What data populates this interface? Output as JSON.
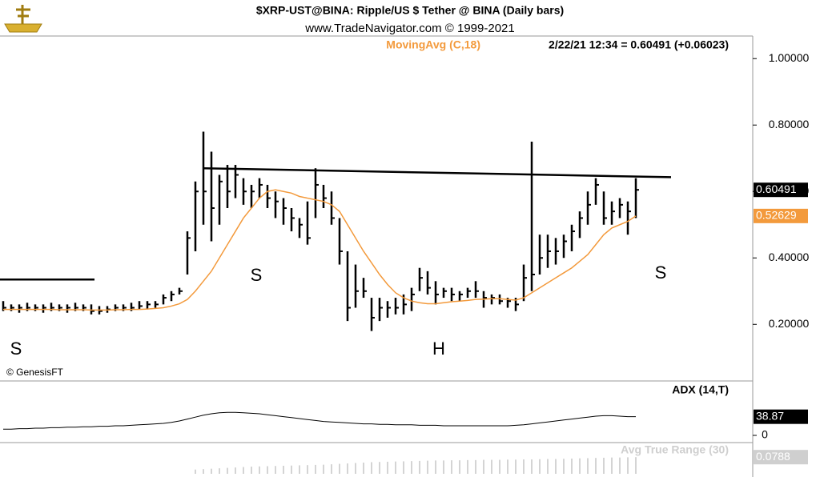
{
  "header": {
    "title": "$XRP-UST@BINA:  Ripple/US $ Tether @ BINA  (Daily bars)",
    "subtitle": "www.TradeNavigator.com © 1999-2021"
  },
  "credit": "© GenesisFT",
  "chart_data": [
    {
      "type": "ohlc",
      "readout": "2/22/21 12:34 = 0.60491 (+0.06023)",
      "color": "#000000",
      "high": [
        0.27,
        0.26,
        0.26,
        0.265,
        0.26,
        0.26,
        0.265,
        0.26,
        0.26,
        0.265,
        0.26,
        0.26,
        0.255,
        0.255,
        0.26,
        0.26,
        0.265,
        0.27,
        0.27,
        0.27,
        0.29,
        0.3,
        0.31,
        0.48,
        0.63,
        0.78,
        0.72,
        0.65,
        0.68,
        0.68,
        0.64,
        0.62,
        0.64,
        0.62,
        0.6,
        0.58,
        0.55,
        0.52,
        0.57,
        0.67,
        0.62,
        0.6,
        0.52,
        0.42,
        0.38,
        0.34,
        0.28,
        0.28,
        0.27,
        0.28,
        0.29,
        0.31,
        0.37,
        0.36,
        0.33,
        0.31,
        0.31,
        0.3,
        0.31,
        0.33,
        0.3,
        0.29,
        0.29,
        0.28,
        0.28,
        0.38,
        0.75,
        0.47,
        0.47,
        0.46,
        0.47,
        0.5,
        0.54,
        0.6,
        0.64,
        0.6,
        0.57,
        0.58,
        0.57,
        0.64
      ],
      "low": [
        0.24,
        0.24,
        0.235,
        0.24,
        0.24,
        0.235,
        0.24,
        0.24,
        0.235,
        0.24,
        0.24,
        0.23,
        0.23,
        0.235,
        0.24,
        0.24,
        0.24,
        0.245,
        0.245,
        0.25,
        0.26,
        0.27,
        0.29,
        0.35,
        0.42,
        0.5,
        0.45,
        0.5,
        0.55,
        0.58,
        0.56,
        0.55,
        0.58,
        0.55,
        0.52,
        0.5,
        0.48,
        0.46,
        0.44,
        0.52,
        0.55,
        0.5,
        0.38,
        0.21,
        0.25,
        0.28,
        0.18,
        0.21,
        0.22,
        0.23,
        0.23,
        0.24,
        0.3,
        0.29,
        0.26,
        0.28,
        0.27,
        0.27,
        0.28,
        0.28,
        0.25,
        0.26,
        0.26,
        0.25,
        0.24,
        0.27,
        0.3,
        0.35,
        0.37,
        0.38,
        0.4,
        0.42,
        0.46,
        0.5,
        0.56,
        0.5,
        0.5,
        0.52,
        0.47,
        0.52
      ],
      "close": [
        0.25,
        0.25,
        0.25,
        0.25,
        0.25,
        0.25,
        0.25,
        0.25,
        0.25,
        0.25,
        0.25,
        0.24,
        0.24,
        0.245,
        0.25,
        0.25,
        0.25,
        0.255,
        0.26,
        0.26,
        0.28,
        0.29,
        0.3,
        0.46,
        0.6,
        0.6,
        0.55,
        0.63,
        0.6,
        0.65,
        0.6,
        0.6,
        0.62,
        0.58,
        0.57,
        0.55,
        0.52,
        0.5,
        0.46,
        0.62,
        0.58,
        0.52,
        0.42,
        0.25,
        0.3,
        0.3,
        0.22,
        0.25,
        0.25,
        0.25,
        0.26,
        0.29,
        0.34,
        0.31,
        0.29,
        0.3,
        0.29,
        0.29,
        0.3,
        0.3,
        0.28,
        0.28,
        0.27,
        0.27,
        0.26,
        0.34,
        0.35,
        0.4,
        0.42,
        0.42,
        0.45,
        0.48,
        0.52,
        0.56,
        0.62,
        0.52,
        0.54,
        0.56,
        0.54,
        0.60491
      ],
      "series": [
        {
          "name": "MovingAvg (C,18)",
          "color": "#f39a3c",
          "values": [
            0.245,
            0.245,
            0.245,
            0.245,
            0.245,
            0.245,
            0.245,
            0.244,
            0.244,
            0.244,
            0.244,
            0.243,
            0.243,
            0.243,
            0.244,
            0.244,
            0.245,
            0.245,
            0.246,
            0.248,
            0.25,
            0.255,
            0.262,
            0.275,
            0.3,
            0.33,
            0.36,
            0.4,
            0.44,
            0.48,
            0.52,
            0.55,
            0.58,
            0.6,
            0.605,
            0.6,
            0.595,
            0.585,
            0.58,
            0.575,
            0.57,
            0.56,
            0.54,
            0.5,
            0.46,
            0.42,
            0.385,
            0.35,
            0.32,
            0.295,
            0.28,
            0.27,
            0.265,
            0.262,
            0.262,
            0.265,
            0.268,
            0.27,
            0.272,
            0.275,
            0.276,
            0.277,
            0.277,
            0.275,
            0.273,
            0.28,
            0.295,
            0.31,
            0.325,
            0.34,
            0.355,
            0.37,
            0.39,
            0.41,
            0.44,
            0.47,
            0.49,
            0.5,
            0.51,
            0.52629
          ]
        }
      ],
      "trendlines": [
        {
          "x": [
            25,
            83.4
          ],
          "y": [
            0.67,
            0.643
          ]
        },
        {
          "x": [
            -0.4,
            11.4
          ],
          "y": [
            0.335,
            0.335
          ]
        }
      ],
      "annotations": [
        "S",
        "S",
        "H",
        "S"
      ],
      "ylim": [
        0.032,
        1.068
      ],
      "yticks": [
        {
          "value": 0.2,
          "label": "0.20000"
        },
        {
          "value": 0.4,
          "label": "0.40000"
        },
        {
          "value": 0.6,
          "label": "0.60000"
        },
        {
          "value": 0.8,
          "label": "0.80000"
        },
        {
          "value": 1,
          "label": "1.00000"
        }
      ]
    },
    {
      "type": "line",
      "series": [
        {
          "name": "ADX (14,T)",
          "color": "#000000",
          "values": [
            13,
            13,
            14,
            14,
            15,
            15,
            16,
            16,
            17,
            17,
            18,
            18,
            19,
            19,
            20,
            20,
            21,
            22,
            23,
            24,
            25,
            27,
            30,
            34,
            38,
            42,
            45,
            47,
            48,
            48,
            47,
            46,
            45,
            43,
            41,
            39,
            37,
            35,
            33,
            31,
            29,
            28,
            27,
            26,
            25,
            24,
            24,
            23,
            23,
            22,
            22,
            22,
            21,
            21,
            21,
            20,
            20,
            20,
            20,
            20,
            20,
            20,
            20,
            20,
            21,
            22,
            24,
            26,
            28,
            30,
            32,
            34,
            36,
            38,
            40,
            41,
            41,
            40,
            39,
            38.87
          ]
        }
      ],
      "ylim": [
        -10,
        110
      ],
      "yticks": [
        0
      ]
    },
    {
      "type": "bar",
      "series": [
        {
          "name": "Avg True Range (30)",
          "color": "#d4d4d4",
          "values": [
            null,
            null,
            null,
            null,
            null,
            null,
            null,
            null,
            null,
            null,
            null,
            null,
            null,
            null,
            null,
            null,
            null,
            null,
            null,
            null,
            null,
            null,
            null,
            null,
            0.02,
            0.022,
            0.024,
            0.026,
            0.028,
            0.03,
            0.032,
            0.034,
            0.035,
            0.036,
            0.037,
            0.038,
            0.039,
            0.04,
            0.041,
            0.042,
            0.043,
            0.045,
            0.047,
            0.049,
            0.051,
            0.053,
            0.055,
            0.056,
            0.057,
            0.058,
            0.059,
            0.06,
            0.061,
            0.062,
            0.063,
            0.063,
            0.064,
            0.064,
            0.065,
            0.065,
            0.066,
            0.066,
            0.066,
            0.067,
            0.067,
            0.068,
            0.068,
            0.069,
            0.07,
            0.07,
            0.071,
            0.072,
            0.073,
            0.074,
            0.075,
            0.076,
            0.077,
            0.077,
            0.078,
            0.0788
          ]
        }
      ],
      "ylim": [
        0,
        0.14
      ]
    }
  ]
}
